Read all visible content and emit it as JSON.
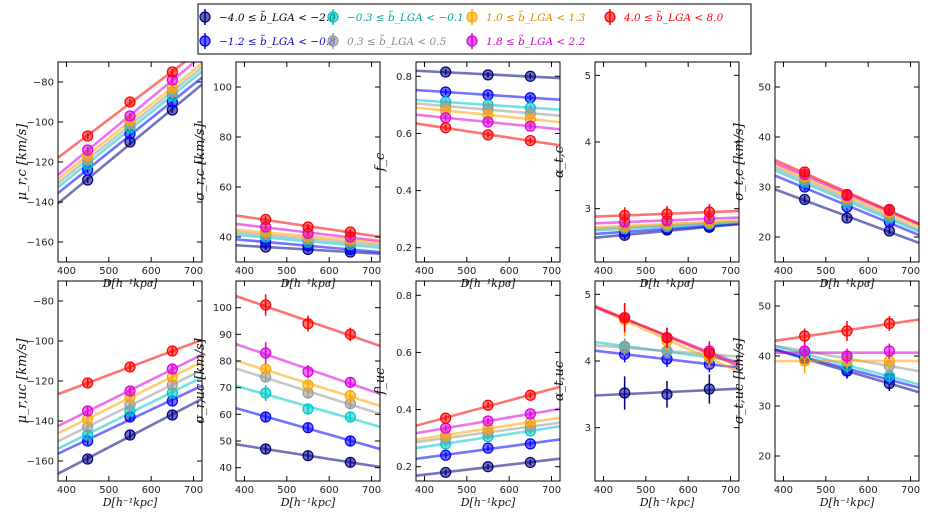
{
  "series": [
    {
      "name": "-4.0 ≤ b̃_LGA < -2.0",
      "label": "−4.0 ≤ b̃_LGA < −2.0",
      "color": "#000080",
      "text_color": "#000000"
    },
    {
      "name": "-1.2 ≤ b̃_LGA < -0.8",
      "label": "−1.2 ≤ b̃_LGA < −0.8",
      "color": "#0000ff",
      "text_color": "#0000cc"
    },
    {
      "name": "-0.3 ≤ b̃_LGA < -0.1",
      "label": "−0.3 ≤ b̃_LGA < −0.1",
      "color": "#00c8c8",
      "text_color": "#00a0a0"
    },
    {
      "name": "0.3 ≤ b̃_LGA < 0.5",
      "label": "0.3 ≤ b̃_LGA < 0.5",
      "color": "#999999",
      "text_color": "#888888"
    },
    {
      "name": "1.0 ≤ b̃_LGA < 1.3",
      "label": "1.0 ≤ b̃_LGA < 1.3",
      "color": "#ffa500",
      "text_color": "#e08800"
    },
    {
      "name": "1.8 ≤ b̃_LGA < 2.2",
      "label": "1.8 ≤ b̃_LGA < 2.2",
      "color": "#dd00dd",
      "text_color": "#cc00cc"
    },
    {
      "name": "4.0 ≤ b̃_LGA < 8.0",
      "label": "4.0 ≤ b̃_LGA < 8.0",
      "color": "#ff0000",
      "text_color": "#ff0000"
    }
  ],
  "chart_data": [
    {
      "id": "mu_r_c",
      "type": "scatter",
      "ylabel": "μ_r,c [km/s]",
      "xlabel": "D[h⁻¹kpc]",
      "xlim": [
        380,
        720
      ],
      "ylim": [
        -170,
        -70
      ],
      "xticks": [
        400,
        500,
        600,
        700
      ],
      "yticks": [
        -160,
        -140,
        -120,
        -100,
        -80
      ],
      "x": [
        450,
        550,
        650
      ],
      "y": [
        [
          -129,
          -110,
          -94
        ],
        [
          -124,
          -106,
          -90
        ],
        [
          -121,
          -103,
          -87
        ],
        [
          -119,
          -101,
          -85
        ],
        [
          -117,
          -99,
          -83
        ],
        [
          -114,
          -97,
          -79
        ],
        [
          -107,
          -90,
          -75
        ]
      ],
      "err": [
        [
          1.5,
          1.5,
          1.5
        ],
        [
          1.5,
          1.5,
          1.5
        ],
        [
          1.5,
          1.5,
          1.5
        ],
        [
          1.5,
          1.5,
          1.5
        ],
        [
          1.5,
          1.5,
          1.5
        ],
        [
          1.5,
          1.5,
          1.5
        ],
        [
          1.5,
          1.5,
          1.5
        ]
      ]
    },
    {
      "id": "sigma_r_c",
      "type": "scatter",
      "ylabel": "σ_r,c [km/s]",
      "xlabel": "D[h⁻¹kpc]",
      "xlim": [
        380,
        720
      ],
      "ylim": [
        30,
        110
      ],
      "xticks": [
        400,
        500,
        600,
        700
      ],
      "yticks": [
        40,
        60,
        80,
        100
      ],
      "x": [
        450,
        550,
        650
      ],
      "y": [
        [
          36,
          35,
          34
        ],
        [
          38,
          36.5,
          35
        ],
        [
          40,
          38,
          37
        ],
        [
          41,
          39,
          38
        ],
        [
          42,
          40,
          39
        ],
        [
          44,
          41.5,
          40
        ],
        [
          47,
          44,
          42
        ]
      ],
      "err": [
        [
          1.2,
          1.2,
          1.2
        ],
        [
          1.2,
          1.2,
          1.2
        ],
        [
          1.2,
          1.2,
          1.2
        ],
        [
          1.2,
          1.2,
          1.2
        ],
        [
          1.2,
          1.2,
          1.2
        ],
        [
          1.2,
          1.2,
          1.2
        ],
        [
          1.2,
          1.2,
          1.2
        ]
      ]
    },
    {
      "id": "f_c",
      "type": "scatter",
      "ylabel": "f_c",
      "xlabel": "D[h⁻¹kpc]",
      "xlim": [
        380,
        720
      ],
      "ylim": [
        0.15,
        0.85
      ],
      "xticks": [
        400,
        500,
        600,
        700
      ],
      "yticks": [
        0.2,
        0.4,
        0.6,
        0.8
      ],
      "x": [
        450,
        550,
        650
      ],
      "y": [
        [
          0.815,
          0.805,
          0.8
        ],
        [
          0.745,
          0.735,
          0.725
        ],
        [
          0.71,
          0.7,
          0.69
        ],
        [
          0.695,
          0.685,
          0.67
        ],
        [
          0.68,
          0.665,
          0.65
        ],
        [
          0.655,
          0.64,
          0.625
        ],
        [
          0.62,
          0.595,
          0.575
        ]
      ],
      "err": [
        [
          0.01,
          0.01,
          0.01
        ],
        [
          0.01,
          0.01,
          0.01
        ],
        [
          0.01,
          0.01,
          0.01
        ],
        [
          0.01,
          0.01,
          0.01
        ],
        [
          0.01,
          0.01,
          0.01
        ],
        [
          0.01,
          0.01,
          0.01
        ],
        [
          0.01,
          0.01,
          0.01
        ]
      ]
    },
    {
      "id": "alpha_t_c",
      "type": "scatter",
      "ylabel": "α_t,c",
      "xlabel": "D[h⁻¹kpc]",
      "xlim": [
        380,
        720
      ],
      "ylim": [
        2.2,
        5.2
      ],
      "xticks": [
        400,
        500,
        600,
        700
      ],
      "yticks": [
        3,
        4,
        5
      ],
      "x": [
        450,
        550,
        650
      ],
      "y": [
        [
          2.6,
          2.68,
          2.72
        ],
        [
          2.65,
          2.7,
          2.74
        ],
        [
          2.7,
          2.73,
          2.77
        ],
        [
          2.72,
          2.75,
          2.78
        ],
        [
          2.74,
          2.77,
          2.8
        ],
        [
          2.8,
          2.82,
          2.85
        ],
        [
          2.9,
          2.92,
          2.95
        ]
      ],
      "err": [
        [
          0.06,
          0.06,
          0.06
        ],
        [
          0.06,
          0.06,
          0.06
        ],
        [
          0.06,
          0.06,
          0.06
        ],
        [
          0.06,
          0.06,
          0.06
        ],
        [
          0.06,
          0.06,
          0.06
        ],
        [
          0.06,
          0.06,
          0.06
        ],
        [
          0.12,
          0.12,
          0.12
        ]
      ]
    },
    {
      "id": "sigma_t_c",
      "type": "scatter",
      "ylabel": "σ_t,c [km/s]",
      "xlabel": "D[h⁻¹kpc]",
      "xlim": [
        380,
        720
      ],
      "ylim": [
        15,
        55
      ],
      "xticks": [
        400,
        500,
        600,
        700
      ],
      "yticks": [
        20,
        30,
        40,
        50
      ],
      "x": [
        450,
        550,
        650
      ],
      "y": [
        [
          27.5,
          23.8,
          21.2
        ],
        [
          30,
          26,
          23
        ],
        [
          31,
          26.8,
          23.8
        ],
        [
          31.5,
          27.3,
          24.2
        ],
        [
          32,
          27.8,
          24.8
        ],
        [
          32.5,
          28.3,
          25.3
        ],
        [
          33,
          28.5,
          25.5
        ]
      ],
      "err": [
        [
          0.7,
          0.7,
          0.7
        ],
        [
          0.7,
          0.7,
          0.7
        ],
        [
          0.7,
          0.7,
          0.7
        ],
        [
          0.7,
          0.7,
          0.7
        ],
        [
          0.7,
          0.7,
          0.7
        ],
        [
          0.7,
          0.7,
          0.7
        ],
        [
          1.0,
          1.0,
          1.0
        ]
      ]
    },
    {
      "id": "mu_r_uc",
      "type": "scatter",
      "ylabel": "μ_r,uc [km/s]",
      "xlabel": "D[h⁻¹kpc]",
      "xlim": [
        380,
        720
      ],
      "ylim": [
        -170,
        -70
      ],
      "xticks": [
        400,
        500,
        600,
        700
      ],
      "yticks": [
        -160,
        -140,
        -120,
        -100,
        -80
      ],
      "x": [
        450,
        550,
        650
      ],
      "y": [
        [
          -159,
          -147,
          -137
        ],
        [
          -150,
          -138,
          -130
        ],
        [
          -147,
          -135,
          -126
        ],
        [
          -143,
          -132,
          -122
        ],
        [
          -139,
          -128,
          -118
        ],
        [
          -135,
          -125,
          -114
        ],
        [
          -121,
          -113,
          -105
        ]
      ],
      "err": [
        [
          2,
          2,
          2
        ],
        [
          2,
          2,
          2
        ],
        [
          2,
          2,
          2
        ],
        [
          2,
          2,
          2
        ],
        [
          2,
          2,
          2
        ],
        [
          2,
          2,
          2
        ],
        [
          2,
          2,
          2
        ]
      ]
    },
    {
      "id": "sigma_r_uc",
      "type": "scatter",
      "ylabel": "σ_r,uc [km/s]",
      "xlabel": "D[h⁻¹kpc]",
      "xlim": [
        380,
        720
      ],
      "ylim": [
        35,
        110
      ],
      "xticks": [
        400,
        500,
        600,
        700
      ],
      "yticks": [
        40,
        50,
        60,
        70,
        80,
        90,
        100
      ],
      "x": [
        450,
        550,
        650
      ],
      "y": [
        [
          47,
          44.5,
          42
        ],
        [
          59,
          55,
          50
        ],
        [
          68,
          62,
          59
        ],
        [
          74,
          68,
          64
        ],
        [
          77,
          71,
          67
        ],
        [
          83,
          76,
          72
        ],
        [
          101,
          94,
          90
        ]
      ],
      "err": [
        [
          2,
          2,
          2
        ],
        [
          2,
          2,
          2
        ],
        [
          3,
          2,
          2
        ],
        [
          2,
          2,
          2
        ],
        [
          2,
          2,
          2
        ],
        [
          4,
          2.5,
          2
        ],
        [
          4,
          3,
          2.5
        ]
      ]
    },
    {
      "id": "f_uc",
      "type": "scatter",
      "ylabel": "f_uc",
      "xlabel": "D[h⁻¹kpc]",
      "xlim": [
        380,
        720
      ],
      "ylim": [
        0.15,
        0.85
      ],
      "xticks": [
        400,
        500,
        600,
        700
      ],
      "yticks": [
        0.2,
        0.4,
        0.6,
        0.8
      ],
      "x": [
        450,
        550,
        650
      ],
      "y": [
        [
          0.18,
          0.2,
          0.215
        ],
        [
          0.24,
          0.265,
          0.28
        ],
        [
          0.28,
          0.305,
          0.325
        ],
        [
          0.3,
          0.32,
          0.34
        ],
        [
          0.31,
          0.335,
          0.355
        ],
        [
          0.335,
          0.36,
          0.385
        ],
        [
          0.37,
          0.415,
          0.45
        ]
      ],
      "err": [
        [
          0.01,
          0.01,
          0.01
        ],
        [
          0.01,
          0.01,
          0.01
        ],
        [
          0.01,
          0.01,
          0.01
        ],
        [
          0.01,
          0.01,
          0.01
        ],
        [
          0.01,
          0.01,
          0.01
        ],
        [
          0.01,
          0.01,
          0.01
        ],
        [
          0.01,
          0.01,
          0.01
        ]
      ]
    },
    {
      "id": "alpha_t_uc",
      "type": "scatter",
      "ylabel": "α_t,uc",
      "xlabel": "D[h⁻¹kpc]",
      "xlim": [
        380,
        720
      ],
      "ylim": [
        2.2,
        5.2
      ],
      "xticks": [
        400,
        500,
        600,
        700
      ],
      "yticks": [
        3,
        4,
        5
      ],
      "x": [
        450,
        550,
        650
      ],
      "y": [
        [
          3.52,
          3.5,
          3.58
        ],
        [
          4.1,
          4.03,
          3.95
        ],
        [
          4.22,
          4.15,
          4.05
        ],
        [
          4.2,
          4.15,
          4.1
        ],
        [
          4.62,
          4.3,
          4.05
        ],
        [
          4.65,
          4.35,
          4.15
        ],
        [
          4.65,
          4.35,
          4.12
        ]
      ],
      "err": [
        [
          0.25,
          0.2,
          0.22
        ],
        [
          0.12,
          0.12,
          0.12
        ],
        [
          0.12,
          0.12,
          0.12
        ],
        [
          0.12,
          0.12,
          0.12
        ],
        [
          0.25,
          0.15,
          0.15
        ],
        [
          0.2,
          0.15,
          0.15
        ],
        [
          0.22,
          0.15,
          0.15
        ]
      ]
    },
    {
      "id": "sigma_t_uc",
      "type": "scatter",
      "ylabel": "σ_t,uc [km/s]",
      "xlabel": "D[h⁻¹kpc]",
      "xlim": [
        380,
        720
      ],
      "ylim": [
        15,
        55
      ],
      "xticks": [
        400,
        500,
        600,
        700
      ],
      "yticks": [
        20,
        30,
        40,
        50
      ],
      "x": [
        450,
        550,
        650
      ],
      "y": [
        [
          39.5,
          37,
          34.5
        ],
        [
          40,
          37,
          35.5
        ],
        [
          40.5,
          38,
          36
        ],
        [
          41,
          39.5,
          38
        ],
        [
          39,
          39,
          39
        ],
        [
          41,
          40,
          41
        ],
        [
          44,
          45,
          46.5
        ]
      ],
      "err": [
        [
          1.5,
          1.5,
          1.5
        ],
        [
          1.5,
          1.5,
          1.5
        ],
        [
          1.5,
          1.5,
          1.5
        ],
        [
          1.5,
          1.5,
          1.5
        ],
        [
          2.5,
          1.5,
          1.5
        ],
        [
          1.5,
          1.5,
          1.5
        ],
        [
          1.5,
          2,
          1.5
        ]
      ]
    }
  ]
}
